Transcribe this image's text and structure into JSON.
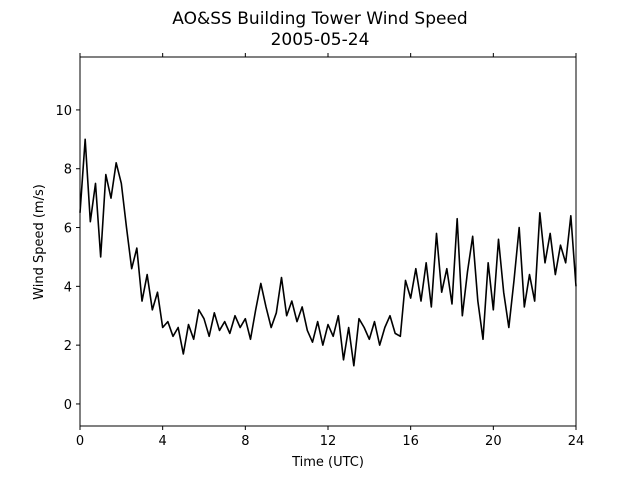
{
  "chart_data": {
    "type": "line",
    "title": "AO&SS Building Tower Wind Speed",
    "subtitle": "2005-05-24",
    "x_label": "Time (UTC)",
    "y_label": "Wind Speed (m/s)",
    "x": [
      0,
      0.25,
      0.5,
      0.75,
      1,
      1.25,
      1.5,
      1.75,
      2,
      2.25,
      2.5,
      2.75,
      3,
      3.25,
      3.5,
      3.75,
      4,
      4.25,
      4.5,
      4.75,
      5,
      5.25,
      5.5,
      5.75,
      6,
      6.25,
      6.5,
      6.75,
      7,
      7.25,
      7.5,
      7.75,
      8,
      8.25,
      8.5,
      8.75,
      9,
      9.25,
      9.5,
      9.75,
      10,
      10.25,
      10.5,
      10.75,
      11,
      11.25,
      11.5,
      11.75,
      12,
      12.25,
      12.5,
      12.75,
      13,
      13.25,
      13.5,
      13.75,
      14,
      14.25,
      14.5,
      14.75,
      15,
      15.25,
      15.5,
      15.75,
      16,
      16.25,
      16.5,
      16.75,
      17,
      17.25,
      17.5,
      17.75,
      18,
      18.25,
      18.5,
      18.75,
      19,
      19.25,
      19.5,
      19.75,
      20,
      20.25,
      20.5,
      20.75,
      21,
      21.25,
      21.5,
      21.75,
      22,
      22.25,
      22.5,
      22.75,
      23,
      23.25,
      23.5,
      23.75,
      24
    ],
    "series": [
      {
        "color": "#000000",
        "values": [
          6.5,
          9.0,
          6.2,
          7.5,
          5.0,
          7.8,
          7.0,
          8.2,
          7.5,
          6.0,
          4.6,
          5.3,
          3.5,
          4.4,
          3.2,
          3.8,
          2.6,
          2.8,
          2.3,
          2.6,
          1.7,
          2.7,
          2.2,
          3.2,
          2.9,
          2.3,
          3.1,
          2.5,
          2.8,
          2.4,
          3.0,
          2.6,
          2.9,
          2.2,
          3.2,
          4.1,
          3.3,
          2.6,
          3.1,
          4.3,
          3.0,
          3.5,
          2.8,
          3.3,
          2.5,
          2.1,
          2.8,
          2.0,
          2.7,
          2.3,
          3.0,
          1.5,
          2.6,
          1.3,
          2.9,
          2.6,
          2.2,
          2.8,
          2.0,
          2.6,
          3.0,
          2.4,
          2.3,
          4.2,
          3.6,
          4.6,
          3.5,
          4.8,
          3.3,
          5.8,
          3.8,
          4.6,
          3.4,
          6.3,
          3.0,
          4.5,
          5.7,
          3.5,
          2.2,
          4.8,
          3.2,
          5.6,
          3.8,
          2.6,
          4.2,
          6.0,
          3.3,
          4.4,
          3.5,
          6.5,
          4.8,
          5.8,
          4.4,
          5.4,
          4.8,
          6.4,
          4.0
        ]
      }
    ],
    "xlim": [
      0,
      24
    ],
    "xticks": [
      0,
      4,
      8,
      12,
      16,
      20,
      24
    ],
    "ylim": [
      -0.75,
      11.8
    ],
    "yticks": [
      0,
      2,
      4,
      6,
      8,
      10
    ],
    "grid": false
  }
}
